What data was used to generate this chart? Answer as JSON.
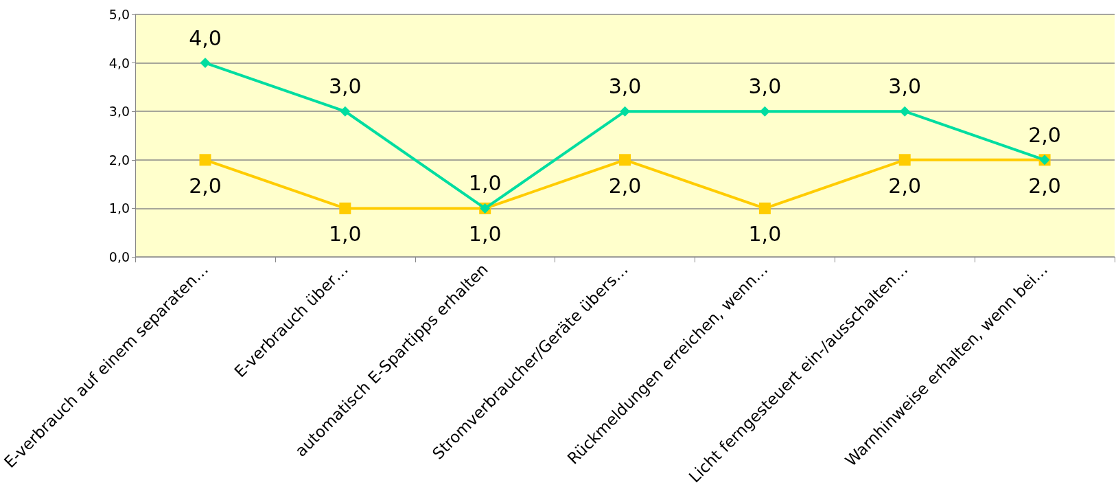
{
  "chart_data": {
    "type": "line",
    "categories": [
      "E-verbrauch auf einem separaten…",
      "E-verbrauch über…",
      "automatisch E-Spartipps erhalten",
      "Stromverbraucher/Geräte übers…",
      "Rückmeldungen erreichen, wenn…",
      "Licht ferngesteuert ein-/ausschalten…",
      "Warnhinweise erhalten, wenn bei…"
    ],
    "series": [
      {
        "color": "#00dda0",
        "marker": "diamond",
        "values": [
          4,
          3,
          1,
          3,
          3,
          3,
          2
        ],
        "value_labels": [
          "4,0",
          "3,0",
          "1,0",
          "3,0",
          "3,0",
          "3,0",
          "2,0"
        ]
      },
      {
        "color": "#ffcc00",
        "marker": "square",
        "values": [
          2,
          1,
          1,
          2,
          1,
          2,
          2
        ],
        "value_labels": [
          "2,0",
          "1,0",
          "1,0",
          "2,0",
          "1,0",
          "2,0",
          "2,0"
        ]
      }
    ],
    "ylim": [
      0,
      5
    ],
    "yticks": [
      {
        "value": 0,
        "label": "0,0"
      },
      {
        "value": 1,
        "label": "1,0"
      },
      {
        "value": 2,
        "label": "2,0"
      },
      {
        "value": 3,
        "label": "3,0"
      },
      {
        "value": 4,
        "label": "4,0"
      },
      {
        "value": 5,
        "label": "5,0"
      }
    ],
    "grid": "y",
    "line_style": "solid"
  }
}
